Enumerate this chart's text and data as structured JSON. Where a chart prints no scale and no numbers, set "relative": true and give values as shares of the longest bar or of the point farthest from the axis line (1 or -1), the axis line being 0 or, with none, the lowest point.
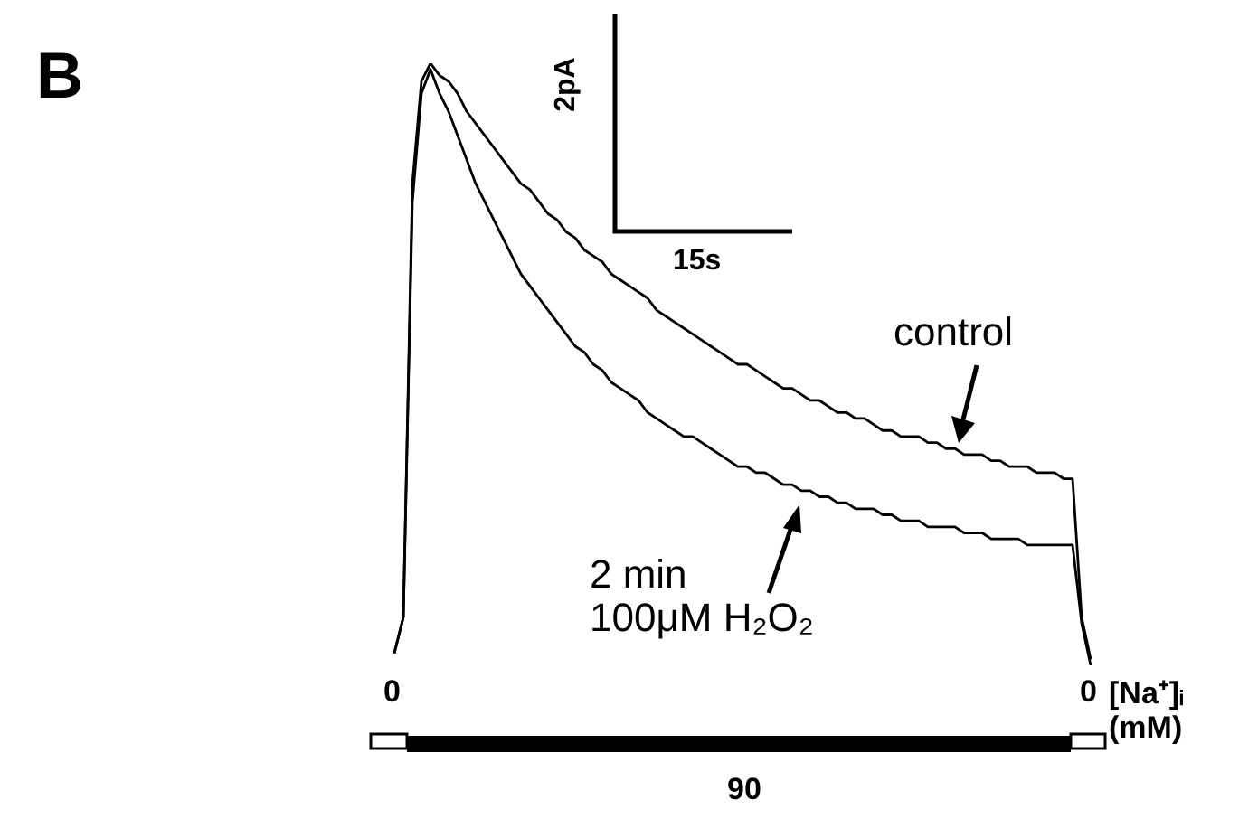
{
  "chart_data": {
    "type": "line",
    "relative": true,
    "legend": false,
    "marker": "none",
    "line_style": "solid",
    "categories": [
      null,
      null,
      null,
      null,
      null,
      null,
      null,
      null,
      null,
      null,
      null,
      null,
      null,
      null,
      null,
      null,
      null,
      null,
      null,
      null,
      null,
      null,
      null,
      null,
      null,
      null,
      null,
      null,
      null,
      null,
      null,
      null,
      null,
      null,
      null,
      null,
      null,
      null,
      null,
      null,
      null,
      null,
      null,
      null,
      null,
      null,
      null,
      null,
      null,
      null,
      null,
      null,
      null,
      null,
      null,
      null,
      null,
      null,
      null,
      null,
      null,
      null,
      null,
      null,
      null,
      null,
      null,
      null,
      null,
      null,
      null,
      null,
      null,
      null,
      null,
      null,
      null,
      null
    ],
    "series": [
      {
        "color": "#000000",
        "values": [
          0.02,
          0.08,
          0.8,
          0.97,
          1,
          0.98,
          0.97,
          0.95,
          0.92,
          0.9,
          0.88,
          0.86,
          0.84,
          0.82,
          0.8,
          0.79,
          0.77,
          0.75,
          0.74,
          0.72,
          0.71,
          0.69,
          0.68,
          0.67,
          0.65,
          0.64,
          0.63,
          0.62,
          0.61,
          0.59,
          0.58,
          0.57,
          0.56,
          0.55,
          0.54,
          0.53,
          0.52,
          0.51,
          0.5,
          0.5,
          0.49,
          0.48,
          0.47,
          0.46,
          0.46,
          0.45,
          0.44,
          0.44,
          0.43,
          0.42,
          0.42,
          0.41,
          0.41,
          0.4,
          0.39,
          0.39,
          0.38,
          0.38,
          0.38,
          0.37,
          0.37,
          0.36,
          0.36,
          0.35,
          0.35,
          0.35,
          0.34,
          0.34,
          0.33,
          0.33,
          0.33,
          0.32,
          0.32,
          0.32,
          0.31,
          0.31,
          0.08,
          0.01
        ]
      },
      {
        "color": "#000000",
        "values": [
          0.02,
          0.08,
          0.77,
          0.95,
          0.99,
          0.95,
          0.92,
          0.88,
          0.84,
          0.8,
          0.77,
          0.74,
          0.71,
          0.68,
          0.65,
          0.63,
          0.61,
          0.59,
          0.57,
          0.55,
          0.53,
          0.52,
          0.5,
          0.49,
          0.47,
          0.46,
          0.45,
          0.44,
          0.42,
          0.41,
          0.4,
          0.39,
          0.38,
          0.38,
          0.37,
          0.36,
          0.35,
          0.34,
          0.33,
          0.33,
          0.32,
          0.32,
          0.31,
          0.3,
          0.3,
          0.29,
          0.29,
          0.28,
          0.28,
          0.27,
          0.27,
          0.26,
          0.26,
          0.26,
          0.25,
          0.25,
          0.24,
          0.24,
          0.24,
          0.23,
          0.23,
          0.23,
          0.23,
          0.22,
          0.22,
          0.22,
          0.21,
          0.21,
          0.21,
          0.21,
          0.2,
          0.2,
          0.2,
          0.2,
          0.2,
          0.2,
          0.07,
          0
        ]
      }
    ],
    "annotations": [
      "B",
      "2pA",
      "15s",
      "0",
      "0",
      "90",
      "[Na⁺]ᵢ\n(mM)",
      "control",
      "2 min\n100μM H₂O₂"
    ]
  }
}
